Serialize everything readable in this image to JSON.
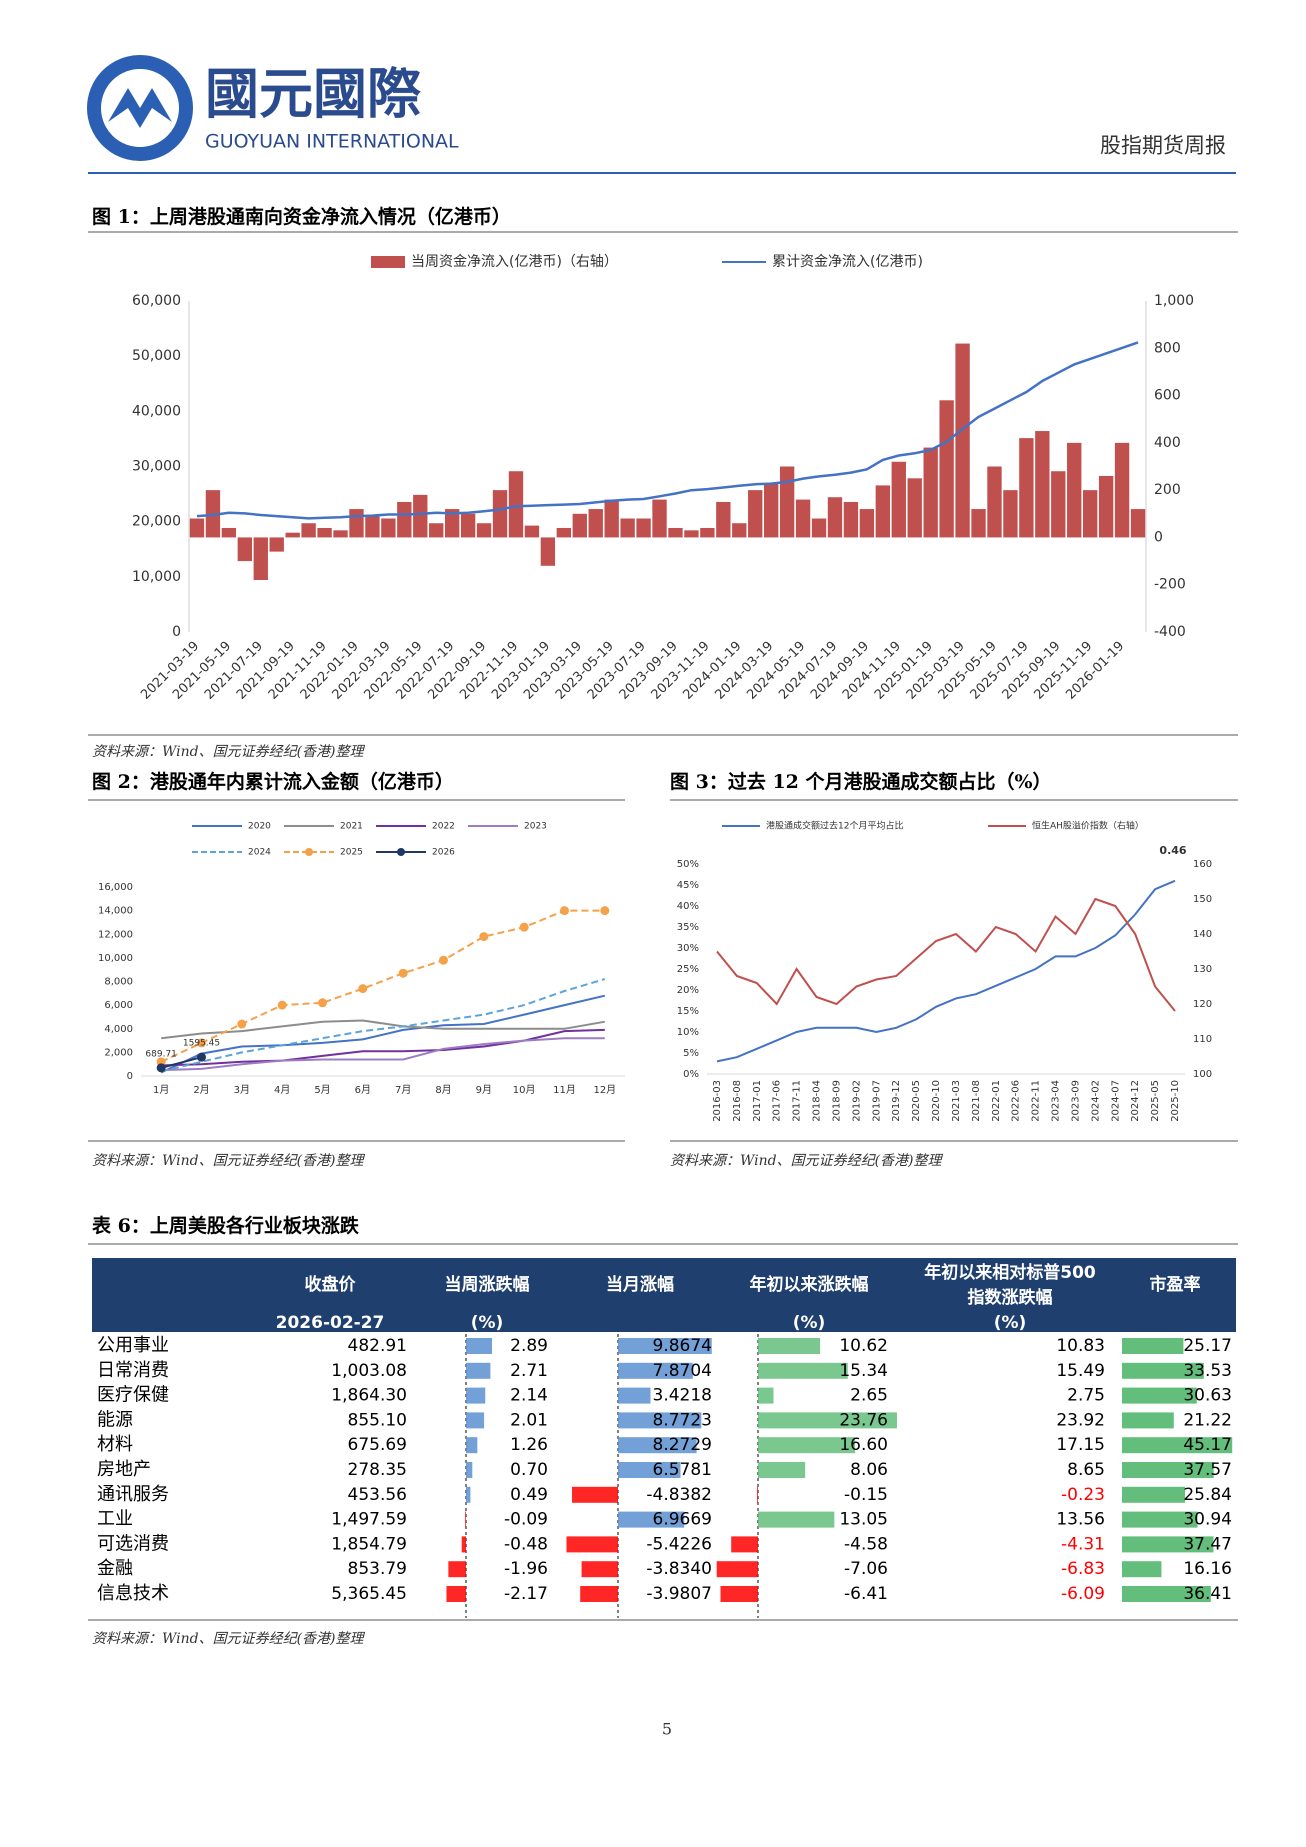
{
  "header": {
    "logo_cn": "國元國際",
    "logo_en": "GUOYUAN INTERNATIONAL",
    "report": "股指期货周报"
  },
  "chart_data": [
    {
      "type": "combo",
      "title": "图 1：上周港股通南向资金净流入情况（亿港币）",
      "source": "资料来源：Wind、国元证券经纪(香港)整理",
      "categories": [
        "2021-03-19",
        null,
        "2021-05-19",
        null,
        "2021-07-19",
        null,
        "2021-09-19",
        null,
        "2021-11-19",
        null,
        "2022-01-19",
        null,
        "2022-03-19",
        null,
        "2022-05-19",
        null,
        "2022-07-19",
        null,
        "2022-09-19",
        null,
        "2022-11-19",
        null,
        "2023-01-19",
        null,
        "2023-03-19",
        null,
        "2023-05-19",
        null,
        "2023-07-19",
        null,
        "2023-09-19",
        null,
        "2023-11-19",
        null,
        "2024-01-19",
        null,
        "2024-03-19",
        null,
        "2024-05-19",
        null,
        "2024-07-19",
        null,
        "2024-09-19",
        null,
        "2024-11-19",
        null,
        "2025-01-19",
        null,
        "2025-03-19",
        null,
        "2025-05-19",
        null,
        "2025-07-19",
        null,
        "2025-09-19",
        null,
        "2025-11-19",
        null,
        "2026-01-19",
        null
      ],
      "ylim": [
        0,
        60000
      ],
      "yticks": [
        0,
        {
          "value": 10000,
          "label": "10,000"
        },
        {
          "value": 20000,
          "label": "20,000"
        },
        {
          "value": 30000,
          "label": "30,000"
        },
        {
          "value": 40000,
          "label": "40,000"
        },
        {
          "value": 50000,
          "label": "50,000"
        },
        {
          "value": 60000,
          "label": "60,000"
        }
      ],
      "y2lim": [
        -400,
        1000
      ],
      "y2ticks": [
        -400,
        -200,
        0,
        200,
        400,
        600,
        800,
        {
          "value": 1000,
          "label": "1,000"
        }
      ],
      "series": [
        {
          "name": "当周资金净流入(亿港币)（右轴）",
          "type": "bar",
          "axis": "y2",
          "color": "#c0504d",
          "values": [
            80,
            200,
            40,
            -100,
            -180,
            -60,
            20,
            60,
            40,
            30,
            120,
            90,
            80,
            150,
            180,
            60,
            120,
            100,
            60,
            200,
            280,
            50,
            -120,
            40,
            100,
            120,
            160,
            80,
            80,
            160,
            40,
            30,
            40,
            150,
            60,
            200,
            230,
            300,
            160,
            80,
            170,
            150,
            120,
            220,
            320,
            250,
            380,
            580,
            820,
            120,
            300,
            200,
            420,
            450,
            280,
            400,
            200,
            260,
            400,
            120
          ]
        },
        {
          "name": "累计资金净流入(亿港币)",
          "type": "line",
          "color": "#4472c4",
          "values": [
            21000,
            21200,
            21600,
            21500,
            21200,
            21000,
            20800,
            20600,
            20700,
            20800,
            21000,
            21100,
            21300,
            21300,
            21400,
            21600,
            21500,
            21600,
            21900,
            22200,
            22800,
            22900,
            23000,
            23100,
            23200,
            23500,
            23800,
            24000,
            24100,
            24600,
            25100,
            25700,
            25900,
            26200,
            26500,
            26800,
            26900,
            27200,
            27800,
            28200,
            28500,
            28900,
            29500,
            31200,
            32000,
            32400,
            33000,
            34500,
            36800,
            39000,
            40500,
            42000,
            43500,
            45500,
            47000,
            48500,
            49500,
            50500,
            51500,
            52500
          ]
        }
      ]
    },
    {
      "type": "line",
      "title": "图 2：港股通年内累计流入金额（亿港币）",
      "source": "资料来源：Wind、国元证券经纪(香港)整理",
      "categories": [
        "1月",
        "2月",
        "3月",
        "4月",
        "5月",
        "6月",
        "7月",
        "8月",
        "9月",
        "10月",
        "11月",
        "12月"
      ],
      "ylim": [
        0,
        16000
      ],
      "yticks": [
        0,
        {
          "value": 2000,
          "label": "2,000"
        },
        {
          "value": 4000,
          "label": "4,000"
        },
        {
          "value": 6000,
          "label": "6,000"
        },
        {
          "value": 8000,
          "label": "8,000"
        },
        {
          "value": 10000,
          "label": "10,000"
        },
        {
          "value": 12000,
          "label": "12,000"
        },
        {
          "value": 14000,
          "label": "14,000"
        },
        {
          "value": 16000,
          "label": "16,000"
        }
      ],
      "series": [
        {
          "name": "2020",
          "color": "#4472c4",
          "values": [
            300,
            1900,
            2500,
            2600,
            2800,
            3100,
            3900,
            4300,
            4400,
            5200,
            6000,
            6800
          ]
        },
        {
          "name": "2021",
          "color": "#8c8c8c",
          "values": [
            3200,
            3600,
            3800,
            4200,
            4600,
            4700,
            4200,
            4000,
            4000,
            4000,
            4000,
            4600
          ]
        },
        {
          "name": "2022",
          "color": "#7030a0",
          "values": [
            900,
            1000,
            1200,
            1300,
            1700,
            2100,
            2100,
            2200,
            2500,
            3000,
            3800,
            3900
          ]
        },
        {
          "name": "2023",
          "color": "#9e7cc1",
          "values": [
            500,
            600,
            1000,
            1300,
            1400,
            1400,
            1400,
            2300,
            2700,
            3000,
            3200,
            3200
          ]
        },
        {
          "name": "2024",
          "color": "#5ba3d9",
          "dash": true,
          "values": [
            400,
            1200,
            2000,
            2600,
            3200,
            3800,
            4200,
            4700,
            5200,
            6000,
            7200,
            8200
          ]
        },
        {
          "name": "2025",
          "color": "#f4a14a",
          "dash": true,
          "marker": true,
          "values": [
            1200,
            2800,
            4400,
            6000,
            6200,
            7400,
            8700,
            9800,
            11800,
            12600,
            14000,
            14000
          ]
        },
        {
          "name": "2026",
          "color": "#1f3864",
          "marker": true,
          "show_values": true,
          "values": [
            689.71,
            1595.45,
            null,
            null,
            null,
            null,
            null,
            null,
            null,
            null,
            null,
            null
          ]
        }
      ]
    },
    {
      "type": "line",
      "title": "图 3：过去 12 个月港股通成交额占比（%）",
      "source": "资料来源：Wind、国元证券经纪(香港)整理",
      "annotation": "0.46",
      "categories": [
        "2016-03",
        "2016-08",
        "2017-01",
        "2017-06",
        "2017-11",
        "2018-04",
        "2018-09",
        "2019-02",
        "2019-07",
        "2019-12",
        "2020-05",
        "2020-10",
        "2021-03",
        "2021-08",
        "2022-01",
        "2022-06",
        "2022-11",
        "2023-04",
        "2023-09",
        "2024-02",
        "2024-07",
        "2024-12",
        "2025-05",
        "2025-10"
      ],
      "ylim": [
        0,
        50
      ],
      "yticks": [
        {
          "value": 0,
          "label": "0%"
        },
        {
          "value": 5,
          "label": "5%"
        },
        {
          "value": 10,
          "label": "10%"
        },
        {
          "value": 15,
          "label": "15%"
        },
        {
          "value": 20,
          "label": "20%"
        },
        {
          "value": 25,
          "label": "25%"
        },
        {
          "value": 30,
          "label": "30%"
        },
        {
          "value": 35,
          "label": "35%"
        },
        {
          "value": 40,
          "label": "40%"
        },
        {
          "value": 45,
          "label": "45%"
        },
        {
          "value": 50,
          "label": "50%"
        }
      ],
      "y2lim": [
        100,
        160
      ],
      "y2ticks": [
        100,
        110,
        120,
        130,
        140,
        150,
        160
      ],
      "series": [
        {
          "name": "港股通成交额过去12个月平均占比",
          "color": "#4472c4",
          "values": [
            3,
            4,
            6,
            8,
            10,
            11,
            11,
            11,
            10,
            11,
            13,
            16,
            18,
            19,
            21,
            23,
            25,
            28,
            28,
            30,
            33,
            38,
            44,
            46
          ]
        },
        {
          "name": "恒生AH股溢价指数（右轴）",
          "color": "#c0504d",
          "axis": "y2",
          "values": [
            135,
            128,
            126,
            120,
            130,
            122,
            120,
            125,
            127,
            128,
            133,
            138,
            140,
            135,
            142,
            140,
            135,
            145,
            140,
            150,
            148,
            140,
            125,
            118
          ]
        }
      ]
    }
  ],
  "table": {
    "title": "表 6：上周美股各行业板块涨跌",
    "source": "资料来源：Wind、国元证券经纪(香港)整理",
    "sectors": [
      "公用事业",
      "日常消费",
      "医疗保健",
      "能源",
      "材料",
      "房地产",
      "通讯服务",
      "工业",
      "可选消费",
      "金融",
      "信息技术"
    ],
    "columns": [
      {
        "header": [
          "收盘价",
          "2026-02-27"
        ],
        "labels": [
          "482.91",
          "1,003.08",
          "1,864.30",
          "855.10",
          "675.69",
          "278.35",
          "453.56",
          "1,497.59",
          "1,854.79",
          "853.79",
          "5,365.45"
        ]
      },
      {
        "header": [
          "当周涨跌幅",
          "(%)"
        ],
        "color": "#5b8fd0",
        "negative_color": "#ff0000",
        "values": [
          2.89,
          2.71,
          2.14,
          2.01,
          1.26,
          0.7,
          0.49,
          -0.09,
          -0.48,
          -1.96,
          -2.17
        ],
        "value_labels": [
          "2.89",
          "2.71",
          "2.14",
          "2.01",
          "1.26",
          "0.70",
          "0.49",
          "-0.09",
          "-0.48",
          "-1.96",
          "-2.17"
        ]
      },
      {
        "header": [
          "当月涨幅"
        ],
        "color": "#5b8fd0",
        "negative_color": "#ff0000",
        "values": [
          9.8674,
          7.8704,
          3.4218,
          8.7723,
          8.2729,
          6.5781,
          -4.8382,
          6.9669,
          -5.4226,
          -3.834,
          -3.9807
        ],
        "value_labels": [
          "9.8674",
          "7.8704",
          "3.4218",
          "8.7723",
          "8.2729",
          "6.5781",
          "-4.8382",
          "6.9669",
          "-5.4226",
          "-3.8340",
          "-3.9807"
        ]
      },
      {
        "header": [
          "年初以来涨跌幅",
          "(%)"
        ],
        "color": "#63be7b",
        "negative_color": "#ff0000",
        "values": [
          10.62,
          15.34,
          2.65,
          23.76,
          16.6,
          8.06,
          -0.15,
          13.05,
          -4.58,
          -7.06,
          -6.41
        ],
        "value_labels": [
          "10.62",
          "15.34",
          "2.65",
          "23.76",
          "16.60",
          "8.06",
          "-0.15",
          "13.05",
          "-4.58",
          "-7.06",
          "-6.41"
        ]
      },
      {
        "header": [
          "年初以来相对标普500",
          "指数涨跌幅",
          "(%)"
        ],
        "negative_color": "#ff0000",
        "values": [
          10.83,
          15.49,
          2.75,
          23.92,
          17.15,
          8.65,
          -0.23,
          13.56,
          -4.31,
          -6.83,
          -6.09
        ],
        "value_labels": [
          "10.83",
          "15.49",
          "2.75",
          "23.92",
          "17.15",
          "8.65",
          "-0.23",
          "13.56",
          "-4.31",
          "-6.83",
          "-6.09"
        ]
      },
      {
        "header": [
          "市盈率"
        ],
        "color": "#63be7b",
        "values": [
          25.17,
          33.53,
          30.63,
          21.22,
          45.17,
          37.57,
          25.84,
          30.94,
          37.47,
          16.16,
          36.41
        ]
      }
    ]
  },
  "page_number": "5"
}
